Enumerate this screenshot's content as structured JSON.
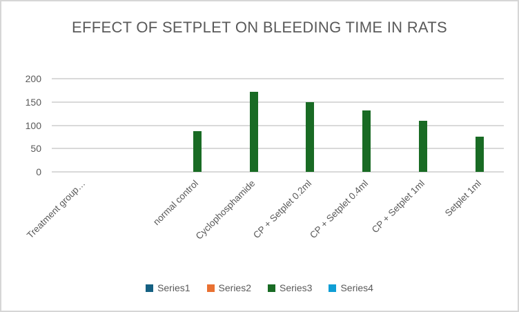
{
  "chart_data": {
    "type": "bar",
    "title": "EFFECT OF SETPLET ON BLEEDING TIME IN RATS",
    "categories": [
      "Treatment group…",
      "",
      "normal control",
      "Cyclophosphamide",
      "CP + Setplet 0.2ml",
      "CP + Setplet 0.4ml",
      "CP + Setplet 1ml",
      "Setplet 1ml"
    ],
    "series": [
      {
        "name": "Series1",
        "color": "#156082",
        "values": [
          0,
          0,
          0,
          0,
          0,
          0,
          0,
          0
        ]
      },
      {
        "name": "Series2",
        "color": "#E97132",
        "values": [
          0,
          0,
          0,
          0,
          0,
          0,
          0,
          0
        ]
      },
      {
        "name": "Series3",
        "color": "#196B24",
        "values": [
          0,
          0,
          87,
          172,
          150,
          132,
          110,
          75
        ]
      },
      {
        "name": "Series4",
        "color": "#0F9ED5",
        "values": [
          0,
          0,
          0,
          0,
          0,
          0,
          0,
          0
        ]
      }
    ],
    "xlabel": "",
    "ylabel": "",
    "y_ticks": [
      0,
      50,
      100,
      150,
      200
    ],
    "ylim": [
      0,
      200
    ],
    "grid": true,
    "legend_position": "bottom",
    "colors": {
      "text_gray": "#595959",
      "gridline": "#D9D9D9",
      "chart_border": "#D6D6D6"
    }
  }
}
